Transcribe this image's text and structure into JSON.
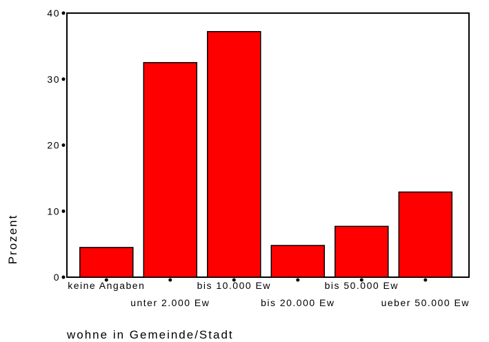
{
  "chart_data": {
    "type": "bar",
    "categories": [
      "keine Angaben",
      "unter 2.000 Ew",
      "bis 10.000 Ew",
      "bis 20.000 Ew",
      "bis 50.000 Ew",
      "ueber 50.000 Ew"
    ],
    "values": [
      4.5,
      32.5,
      37.2,
      4.8,
      7.7,
      12.9
    ],
    "xlabel": "wohne in Gemeinde/Stadt",
    "ylabel": "Prozent",
    "ylim": [
      0,
      40
    ],
    "yticks": [
      0,
      10,
      20,
      30,
      40
    ],
    "grid": false,
    "bar_color": "#ff0000",
    "bar_edge_color": "#000000"
  }
}
